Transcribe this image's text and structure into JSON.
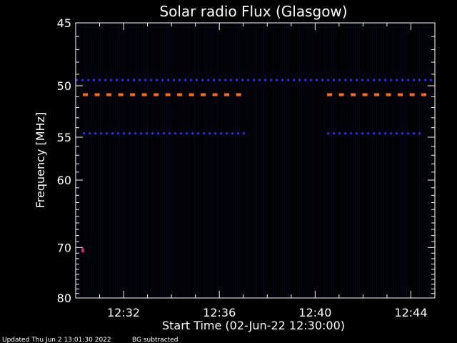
{
  "chart_data": {
    "type": "heatmap",
    "title": "Solar radio Flux (Glasgow)",
    "xlabel": "Start Time (02-Jun-22 12:30:00)",
    "ylabel": "Frequency [MHz]",
    "x_ticks": [
      "12:32",
      "12:36",
      "12:40",
      "12:44"
    ],
    "x_tick_minutes": [
      2,
      6,
      10,
      14
    ],
    "xlim_minutes": [
      0,
      15
    ],
    "y_ticks": [
      45,
      50,
      55,
      60,
      70,
      80
    ],
    "ylim": [
      45,
      80
    ],
    "y_scale": "reciprocal",
    "background_color": "#000000",
    "spectrogram_color": "#05052a",
    "interference_lines": [
      {
        "freq": 49.5,
        "start_min": 0,
        "end_min": 15,
        "color": "#2a2aff"
      },
      {
        "freq": 50.8,
        "start_min": 0.3,
        "end_min": 7.0,
        "color": "#ff6a1a"
      },
      {
        "freq": 50.8,
        "start_min": 10.5,
        "end_min": 14.5,
        "color": "#ff6a1a"
      },
      {
        "freq": 54.6,
        "start_min": 0.3,
        "end_min": 7.0,
        "color": "#2a2aff"
      },
      {
        "freq": 54.6,
        "start_min": 10.5,
        "end_min": 14.5,
        "color": "#2a2aff"
      }
    ],
    "spots": [
      {
        "freq": 70.5,
        "minute": 0.3,
        "color": "#cc2266"
      }
    ]
  },
  "footer": {
    "updated": "Updated Thu Jun  2 13:01:30 2022",
    "bg_note": "BG subtracted"
  },
  "colors": {
    "axis": "#ffffff",
    "text": "#ffffff"
  }
}
